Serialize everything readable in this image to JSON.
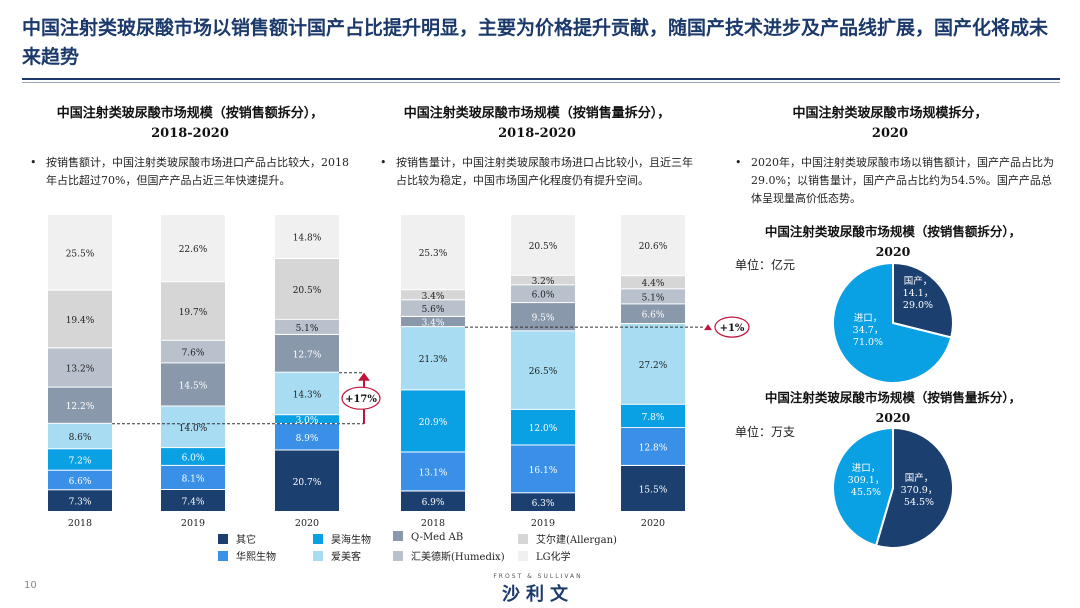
{
  "headline": "中国注射类玻尿酸市场以销售额计国产占比提升明显，主要为价格提升贡献，随国产技术进步及产品线扩展，国产化将成未来趋势",
  "panels": {
    "left": {
      "title_line1": "中国注射类玻尿酸市场规模（按销售额拆分），",
      "title_line2": "2018-2020",
      "bullet": "按销售额计，中国注射类玻尿酸市场进口产品占比较大，2018年占比超过70%，但国产产品占近三年快速提升。"
    },
    "middle": {
      "title_line1": "中国注射类玻尿酸市场规模（按销售量拆分），",
      "title_line2": "2018-2020",
      "bullet": "按销售量计，中国注射类玻尿酸市场进口占比较小，且近三年占比较为稳定，中国市场国产化程度仍有提升空间。"
    },
    "right": {
      "title_line1": "中国注射类玻尿酸市场规模拆分，",
      "title_line2": "2020",
      "bullet": "2020年，中国注射类玻尿酸市场以销售额计，国产产品占比为29.0%；以销售量计，国产产品占比约为54.5%。国产产品总体呈现量高价低态势。",
      "pie1_title_line1": "中国注射类玻尿酸市场规模（按销售额拆分），",
      "pie1_title_line2": "2020",
      "pie1_unit": "单位：亿元",
      "pie2_title_line1": "中国注射类玻尿酸市场规模（按销售量拆分），",
      "pie2_title_line2": "2020",
      "pie2_unit": "单位：万支"
    }
  },
  "legend": [
    {
      "label": "其它",
      "color": "#1b3f6e"
    },
    {
      "label": "昊海生物",
      "color": "#0aa0e4"
    },
    {
      "label": "Q-Med AB",
      "color": "#8a98ab"
    },
    {
      "label": "艾尔建(Allergan)",
      "color": "#d6d6d6"
    },
    {
      "label": "华熙生物",
      "color": "#3a8fe6"
    },
    {
      "label": "爱美客",
      "color": "#a8dcf2"
    },
    {
      "label": "汇美德斯(Humedix)",
      "color": "#b9c1cc"
    },
    {
      "label": "LG化学",
      "color": "#f0f0f0"
    }
  ],
  "annotations": {
    "left_growth": "+17%",
    "middle_growth": "+1%"
  },
  "page_number": "10",
  "footer": {
    "tagline": "FROST & SULLIVAN",
    "brand": "沙利文"
  },
  "chart_data": [
    {
      "type": "bar",
      "stacked": true,
      "title": "中国注射类玻尿酸市场规模（按销售额拆分），2018-2020",
      "categories": [
        "2018",
        "2019",
        "2020"
      ],
      "series": [
        {
          "name": "其它",
          "values": [
            7.3,
            7.4,
            20.7
          ],
          "color": "#1b3f6e"
        },
        {
          "name": "华熙生物",
          "values": [
            6.6,
            8.1,
            8.9
          ],
          "color": "#3a8fe6"
        },
        {
          "name": "昊海生物",
          "values": [
            7.2,
            6.0,
            3.0
          ],
          "color": "#0aa0e4"
        },
        {
          "name": "爱美客",
          "values": [
            8.6,
            14.0,
            14.3
          ],
          "color": "#a8dcf2"
        },
        {
          "name": "Q-Med AB",
          "values": [
            12.2,
            14.5,
            12.7
          ],
          "color": "#8a98ab"
        },
        {
          "name": "汇美德斯(Humedix)",
          "values": [
            13.2,
            7.6,
            5.1
          ],
          "color": "#b9c1cc"
        },
        {
          "name": "艾尔建(Allergan)",
          "values": [
            19.4,
            19.7,
            20.5
          ],
          "color": "#d6d6d6"
        },
        {
          "name": "LG化学",
          "values": [
            25.5,
            22.6,
            14.8
          ],
          "color": "#f0f0f0"
        }
      ],
      "value_suffix": "%"
    },
    {
      "type": "bar",
      "stacked": true,
      "title": "中国注射类玻尿酸市场规模（按销售量拆分），2018-2020",
      "categories": [
        "2018",
        "2019",
        "2020"
      ],
      "series": [
        {
          "name": "其它",
          "values": [
            6.9,
            6.3,
            15.5
          ],
          "color": "#1b3f6e"
        },
        {
          "name": "华熙生物",
          "values": [
            13.1,
            16.1,
            12.8
          ],
          "color": "#3a8fe6"
        },
        {
          "name": "昊海生物",
          "values": [
            20.9,
            12.0,
            7.8
          ],
          "color": "#0aa0e4"
        },
        {
          "name": "爱美客",
          "values": [
            21.3,
            26.5,
            27.2
          ],
          "color": "#a8dcf2"
        },
        {
          "name": "Q-Med AB",
          "values": [
            3.4,
            9.5,
            6.6
          ],
          "color": "#8a98ab"
        },
        {
          "name": "汇美德斯(Humedix)",
          "values": [
            5.6,
            6.0,
            5.1
          ],
          "color": "#b9c1cc"
        },
        {
          "name": "艾尔建(Allergan)",
          "values": [
            3.4,
            3.2,
            4.4
          ],
          "color": "#d6d6d6"
        },
        {
          "name": "LG化学",
          "values": [
            25.3,
            20.5,
            20.6
          ],
          "color": "#f0f0f0"
        }
      ],
      "value_suffix": "%"
    },
    {
      "type": "pie",
      "title": "中国注射类玻尿酸市场规模（按销售额拆分），2020",
      "slices": [
        {
          "label": "国产",
          "value": 14.1,
          "pct": "29.0%",
          "color": "#1b3f6e"
        },
        {
          "label": "进口",
          "value": 34.7,
          "pct": "71.0%",
          "color": "#0aa0e4"
        }
      ]
    },
    {
      "type": "pie",
      "title": "中国注射类玻尿酸市场规模（按销售量拆分），2020",
      "slices": [
        {
          "label": "国产",
          "value": 370.9,
          "pct": "54.5%",
          "color": "#1b3f6e"
        },
        {
          "label": "进口",
          "value": 309.1,
          "pct": "45.5%",
          "color": "#0aa0e4"
        }
      ]
    }
  ]
}
